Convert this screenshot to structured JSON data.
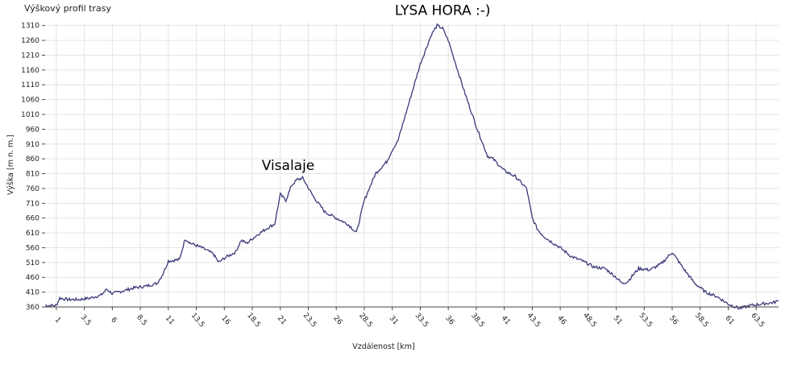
{
  "chart_data": {
    "type": "line",
    "title": "Výškový profil trasy",
    "xlabel": "Vzdálenost [km]",
    "ylabel": "Výška [m n. m.]",
    "xlim": [
      0,
      65.5
    ],
    "ylim": [
      360,
      1320
    ],
    "grid": true,
    "x_ticks": [
      1,
      3.5,
      6,
      8.5,
      11,
      13.5,
      16,
      18.5,
      21,
      23.5,
      26,
      28.5,
      31,
      33.5,
      36,
      38.5,
      41,
      43.5,
      46,
      48.5,
      51,
      53.5,
      56,
      58.5,
      61,
      63.5
    ],
    "x_tick_labels": [
      "1",
      "3.5",
      "6",
      "8.5",
      "11",
      "13.5",
      "16",
      "18.5",
      "21",
      "23.5",
      "26",
      "28.5",
      "31",
      "33.5",
      "36",
      "38.5",
      "41",
      "43.5",
      "46",
      "48.5",
      "51",
      "53.5",
      "56",
      "58.5",
      "61",
      "63.5"
    ],
    "y_ticks": [
      360,
      410,
      460,
      510,
      560,
      610,
      660,
      710,
      760,
      810,
      860,
      910,
      960,
      1010,
      1060,
      1110,
      1160,
      1210,
      1260,
      1310
    ],
    "y_tick_labels": [
      "360",
      "410",
      "460",
      "510",
      "560",
      "610",
      "660",
      "710",
      "760",
      "810",
      "860",
      "910",
      "960",
      "1010",
      "1060",
      "1110",
      "1160",
      "1210",
      "1260",
      "1310"
    ],
    "series": [
      {
        "color": "#3a3a7a",
        "x": [
          0,
          1,
          1.3,
          2,
          3,
          4,
          5,
          5.5,
          6,
          7,
          8,
          9,
          10,
          10.5,
          11,
          12,
          12.5,
          13,
          14,
          15,
          15.5,
          16,
          17,
          17.5,
          18,
          19,
          20,
          20.5,
          21,
          21.5,
          22,
          22.5,
          23,
          24,
          25,
          26,
          27,
          27.3,
          27.8,
          28.5,
          29.5,
          30.5,
          31,
          31.5,
          32.5,
          33.5,
          34.5,
          35,
          35.5,
          36,
          36.5,
          37.5,
          38.5,
          39.5,
          40,
          41,
          42,
          43,
          43.5,
          44,
          44.5,
          45,
          46,
          47,
          48,
          49,
          50,
          51,
          51.5,
          52,
          53,
          54,
          55,
          56,
          57,
          58,
          59,
          60,
          61,
          62,
          62.5,
          63,
          64,
          65,
          65.5
        ],
        "y": [
          365,
          365,
          390,
          385,
          385,
          390,
          400,
          420,
          405,
          415,
          425,
          430,
          440,
          470,
          515,
          520,
          590,
          575,
          560,
          540,
          510,
          525,
          545,
          585,
          575,
          605,
          630,
          640,
          740,
          720,
          770,
          790,
          795,
          730,
          680,
          660,
          640,
          630,
          610,
          720,
          810,
          850,
          890,
          920,
          1050,
          1180,
          1280,
          1310,
          1300,
          1260,
          1200,
          1080,
          970,
          870,
          860,
          820,
          800,
          760,
          660,
          620,
          600,
          585,
          560,
          530,
          515,
          495,
          490,
          460,
          440,
          445,
          490,
          485,
          505,
          545,
          490,
          440,
          410,
          395,
          370,
          355,
          360,
          365,
          370,
          375,
          380
        ]
      }
    ],
    "annotations": [
      {
        "text": "Visalaje",
        "x": 21.7,
        "y": 822
      },
      {
        "text": "LYSA HORA :-)",
        "x": 35.5,
        "y": 1346
      }
    ]
  }
}
